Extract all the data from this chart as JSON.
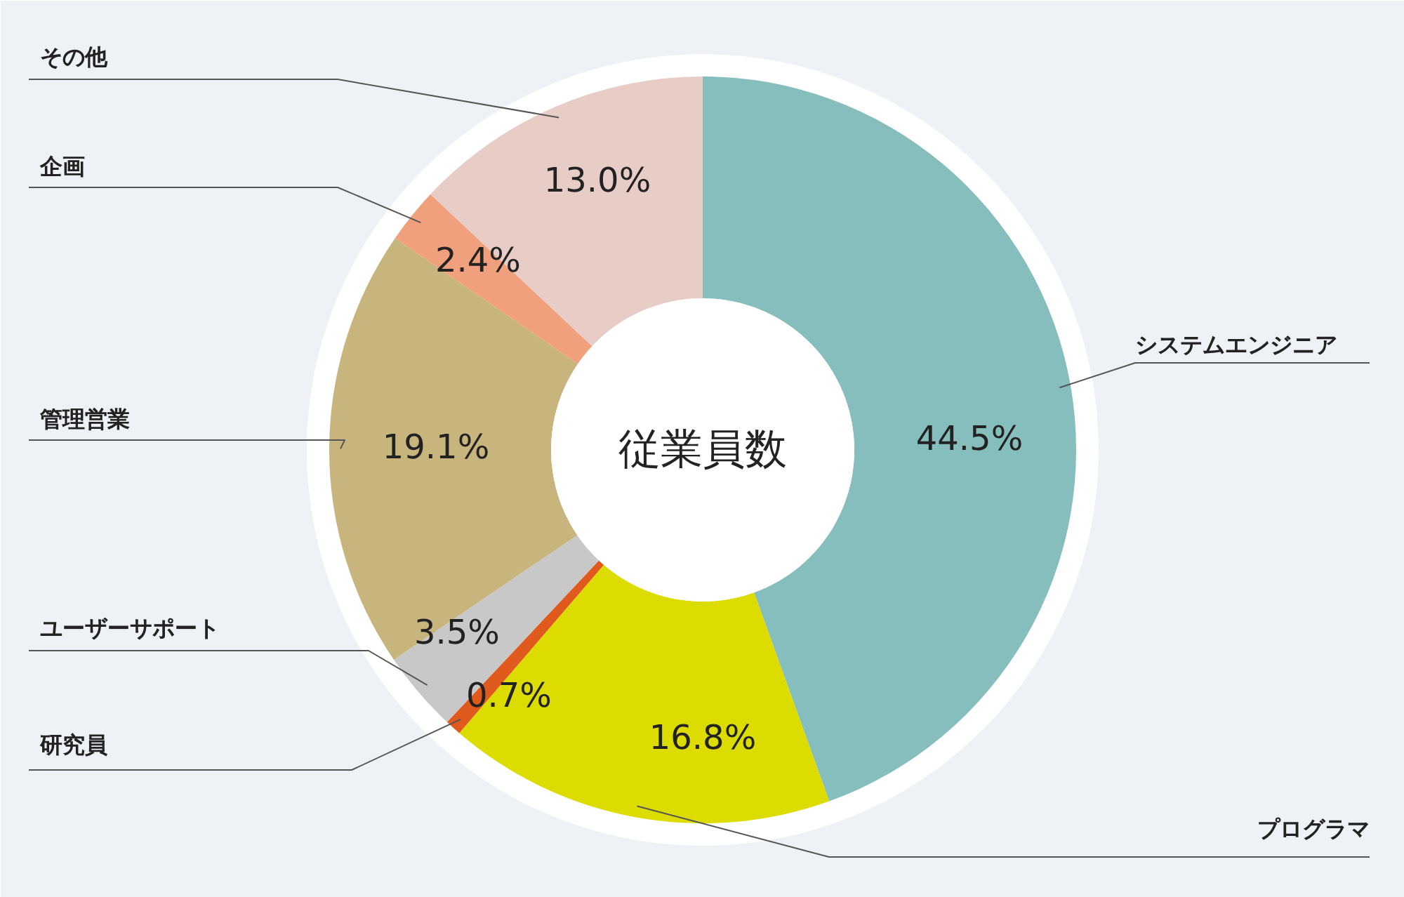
{
  "chart_data": {
    "type": "donut",
    "title": "従業員数",
    "categories": [
      "システムエンジニア",
      "プログラマ",
      "研究員",
      "ユーザーサポート",
      "管理営業",
      "企画",
      "その他"
    ],
    "values": [
      44.5,
      16.8,
      0.7,
      3.5,
      19.1,
      2.4,
      13.0
    ],
    "colors": [
      "#86bdbd",
      "#dcdc00",
      "#e05a1e",
      "#c8c8c8",
      "#c8b47d",
      "#f0a07d",
      "#e8ccc6"
    ],
    "value_labels": [
      "44.5%",
      "16.8%",
      "0.7%",
      "3.5%",
      "19.1%",
      "2.4%",
      "13.0%"
    ]
  }
}
